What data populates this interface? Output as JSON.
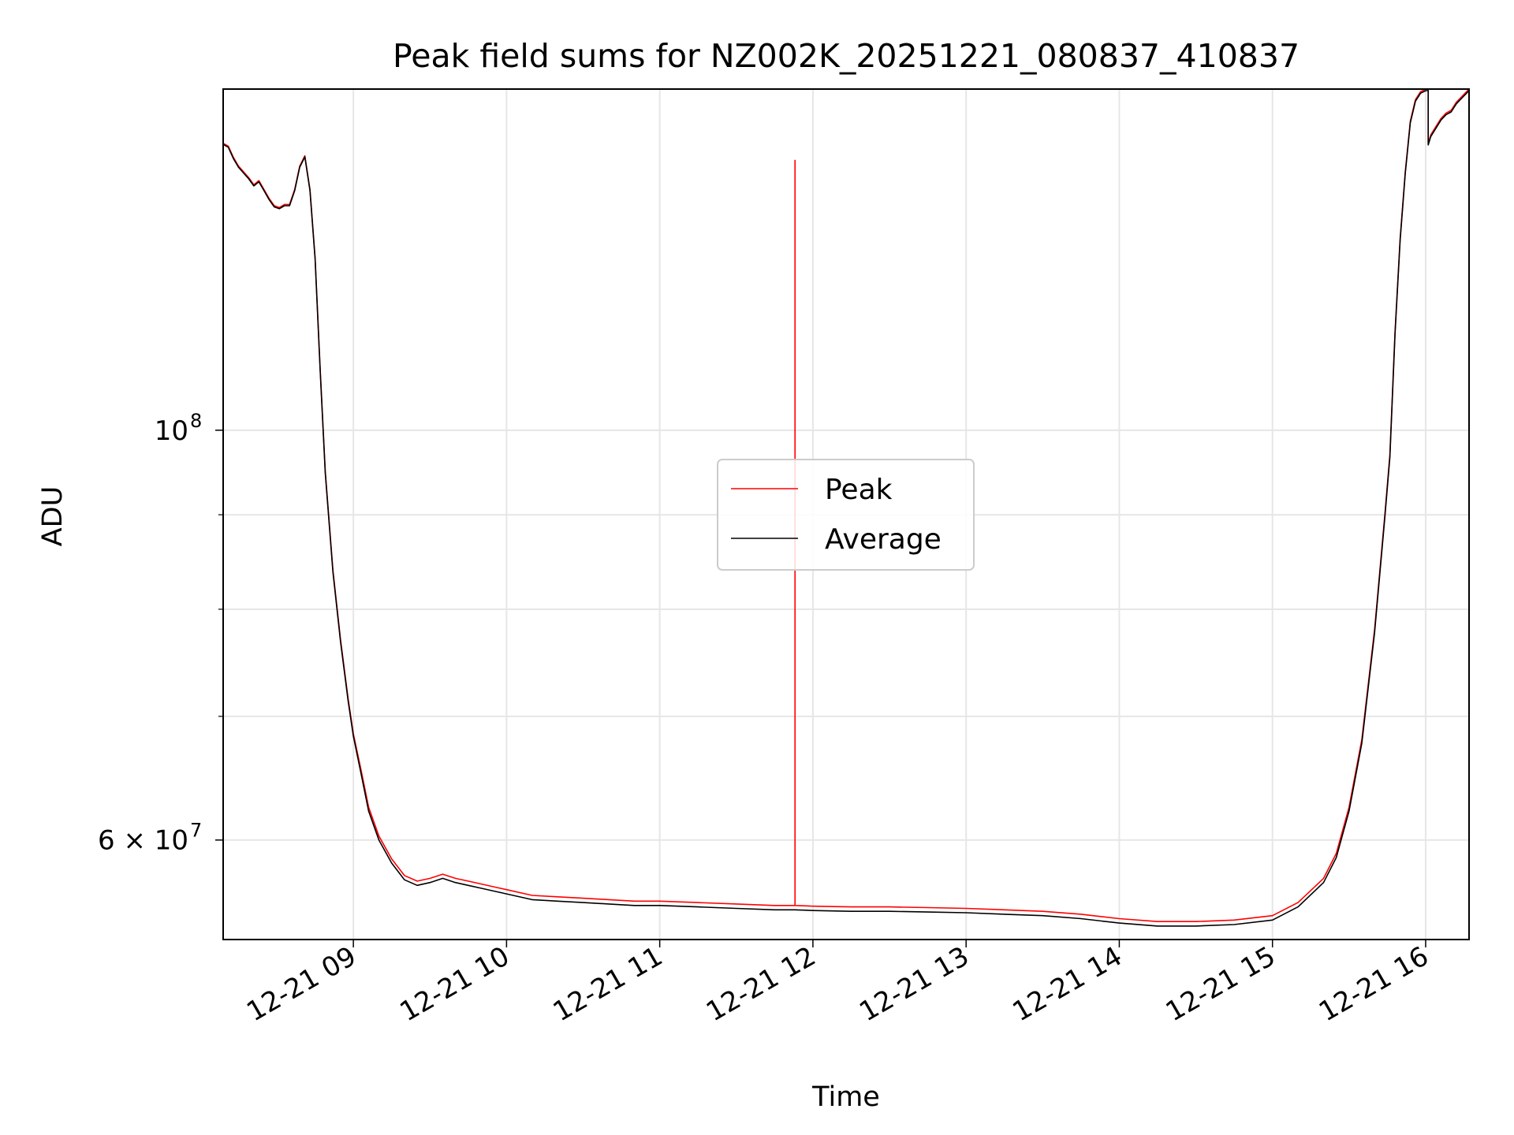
{
  "chart_data": {
    "type": "line",
    "title": "Peak field sums for NZ002K_20251221_080837_410837",
    "xlabel": "Time",
    "ylabel": "ADU",
    "yscale": "log",
    "xlim": [
      "2025-12-21 08:09",
      "2025-12-21 16:17"
    ],
    "ylim": [
      53000000,
      153000000
    ],
    "grid": true,
    "legend_position": "center",
    "x_tick_labels": [
      "12-21 09",
      "12-21 10",
      "12-21 11",
      "12-21 12",
      "12-21 13",
      "12-21 14",
      "12-21 15",
      "12-21 16"
    ],
    "y_tick_labels": [
      {
        "value": 100000000,
        "base": "10",
        "exp": "8"
      },
      {
        "value": 60000000,
        "base": "6 × 10",
        "exp": "7"
      }
    ],
    "series": [
      {
        "name": "Peak",
        "color": "#ff0000",
        "x": [
          "08:09",
          "08:11",
          "08:13",
          "08:15",
          "08:17",
          "08:19",
          "08:21",
          "08:23",
          "08:25",
          "08:27",
          "08:29",
          "08:31",
          "08:33",
          "08:35",
          "08:37",
          "08:39",
          "08:41",
          "08:43",
          "08:45",
          "08:47",
          "08:49",
          "08:52",
          "08:55",
          "08:58",
          "09:00",
          "09:03",
          "09:06",
          "09:10",
          "09:15",
          "09:20",
          "09:25",
          "09:30",
          "09:35",
          "09:40",
          "09:45",
          "09:50",
          "09:55",
          "10:00",
          "10:10",
          "10:20",
          "10:30",
          "10:40",
          "10:50",
          "11:00",
          "11:15",
          "11:30",
          "11:45",
          "11:53",
          "11:53",
          "11:53",
          "12:00",
          "12:15",
          "12:30",
          "12:45",
          "13:00",
          "13:15",
          "13:30",
          "13:45",
          "14:00",
          "14:15",
          "14:30",
          "14:45",
          "15:00",
          "15:10",
          "15:20",
          "15:25",
          "15:30",
          "15:35",
          "15:40",
          "15:44",
          "15:46",
          "15:48",
          "15:50",
          "15:52",
          "15:54",
          "15:56",
          "15:58",
          "16:00",
          "16:01",
          "16:01",
          "16:02",
          "16:04",
          "16:06",
          "16:08",
          "16:10",
          "16:12",
          "16:14",
          "16:16",
          "16:17"
        ],
        "y": [
          143000000,
          142500000,
          140500000,
          139000000,
          138000000,
          137000000,
          135800000,
          136500000,
          135000000,
          133500000,
          132300000,
          132000000,
          132500000,
          132500000,
          135000000,
          139000000,
          140800000,
          135000000,
          124000000,
          108000000,
          95000000,
          84000000,
          77000000,
          71500000,
          68500000,
          65500000,
          62500000,
          60300000,
          58600000,
          57400000,
          57000000,
          57200000,
          57500000,
          57200000,
          57000000,
          56800000,
          56600000,
          56400000,
          56000000,
          55900000,
          55800000,
          55700000,
          55600000,
          55600000,
          55500000,
          55400000,
          55300000,
          55300000,
          140000000,
          55300000,
          55250000,
          55200000,
          55200000,
          55150000,
          55100000,
          55000000,
          54900000,
          54700000,
          54400000,
          54200000,
          54200000,
          54300000,
          54600000,
          55500000,
          57200000,
          59000000,
          62500000,
          68000000,
          78000000,
          90000000,
          97000000,
          113000000,
          127000000,
          138000000,
          147000000,
          151000000,
          152500000,
          153000000,
          153000000,
          143000000,
          144500000,
          146000000,
          147500000,
          148500000,
          149000000,
          150500000,
          151500000,
          152500000,
          153000000
        ]
      },
      {
        "name": "Average",
        "color": "#000000",
        "x": [
          "08:09",
          "08:11",
          "08:13",
          "08:15",
          "08:17",
          "08:19",
          "08:21",
          "08:23",
          "08:25",
          "08:27",
          "08:29",
          "08:31",
          "08:33",
          "08:35",
          "08:37",
          "08:39",
          "08:41",
          "08:43",
          "08:45",
          "08:47",
          "08:49",
          "08:52",
          "08:55",
          "08:58",
          "09:00",
          "09:03",
          "09:06",
          "09:10",
          "09:15",
          "09:20",
          "09:25",
          "09:30",
          "09:35",
          "09:40",
          "09:45",
          "09:50",
          "09:55",
          "10:00",
          "10:10",
          "10:20",
          "10:30",
          "10:40",
          "10:50",
          "11:00",
          "11:15",
          "11:30",
          "11:45",
          "11:53",
          "12:00",
          "12:15",
          "12:30",
          "12:45",
          "13:00",
          "13:15",
          "13:30",
          "13:45",
          "14:00",
          "14:15",
          "14:30",
          "14:45",
          "15:00",
          "15:10",
          "15:20",
          "15:25",
          "15:30",
          "15:35",
          "15:40",
          "15:44",
          "15:46",
          "15:48",
          "15:50",
          "15:52",
          "15:54",
          "15:56",
          "15:58",
          "16:00",
          "16:01",
          "16:01",
          "16:02",
          "16:04",
          "16:06",
          "16:08",
          "16:10",
          "16:12",
          "16:14",
          "16:16",
          "16:17"
        ],
        "y": [
          142800000,
          142300000,
          140300000,
          138800000,
          137800000,
          136800000,
          135600000,
          136300000,
          134800000,
          133300000,
          132100000,
          131800000,
          132300000,
          132300000,
          134800000,
          138800000,
          140600000,
          134800000,
          123800000,
          107800000,
          94800000,
          83800000,
          76800000,
          71300000,
          68300000,
          65200000,
          62200000,
          60000000,
          58300000,
          57100000,
          56700000,
          56900000,
          57200000,
          56900000,
          56700000,
          56500000,
          56300000,
          56100000,
          55700000,
          55600000,
          55500000,
          55400000,
          55300000,
          55300000,
          55200000,
          55100000,
          55000000,
          55000000,
          54950000,
          54900000,
          54900000,
          54850000,
          54800000,
          54700000,
          54600000,
          54400000,
          54100000,
          53900000,
          53900000,
          54000000,
          54300000,
          55200000,
          56900000,
          58700000,
          62200000,
          67700000,
          77700000,
          89700000,
          96700000,
          112700000,
          126700000,
          137700000,
          146700000,
          150700000,
          152200000,
          152700000,
          152700000,
          142700000,
          144200000,
          145700000,
          147200000,
          148200000,
          148700000,
          150200000,
          151200000,
          152200000,
          152700000
        ]
      }
    ]
  }
}
